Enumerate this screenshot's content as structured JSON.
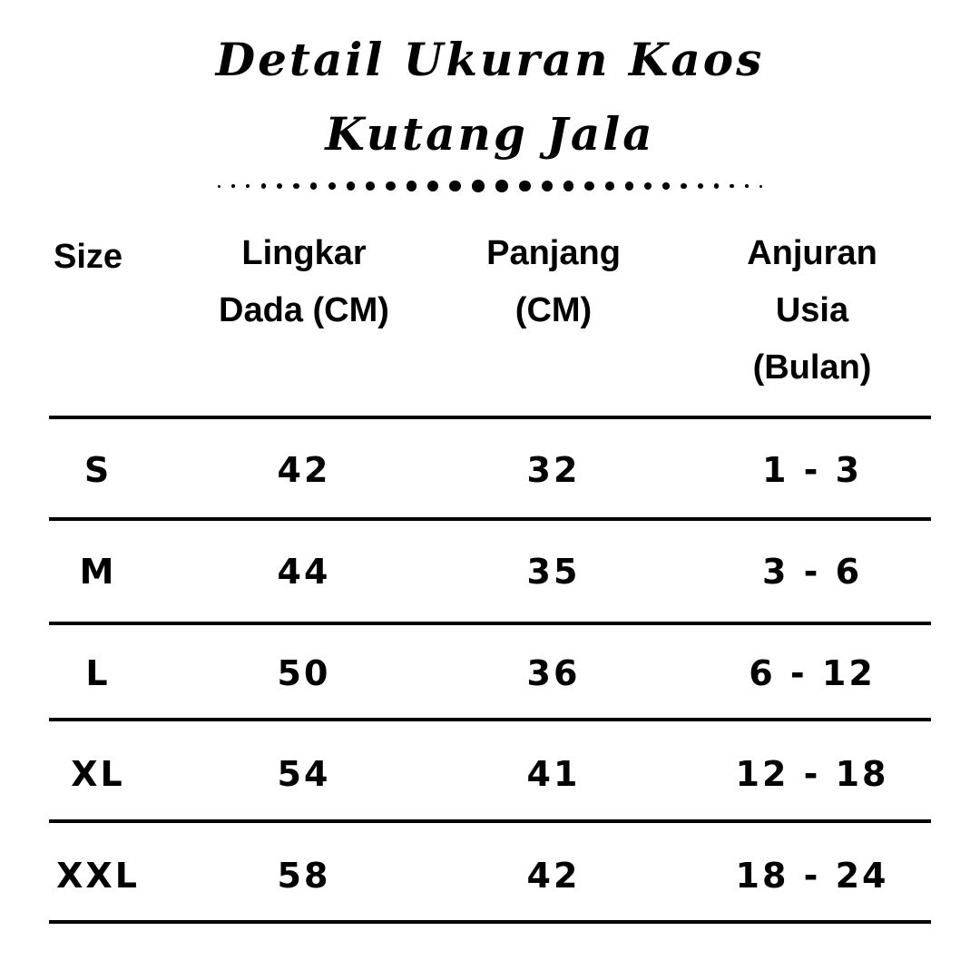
{
  "title": {
    "line1": "Detail Ukuran Kaos",
    "line2": "Kutang Jala"
  },
  "table": {
    "headers": [
      "Size",
      "Lingkar Dada (CM)",
      "Panjang (CM)",
      "Anjuran Usia (Bulan)"
    ],
    "header_lines": [
      [
        "Size"
      ],
      [
        "Lingkar",
        "Dada (CM)"
      ],
      [
        "Panjang",
        "(CM)"
      ],
      [
        "Anjuran",
        "Usia",
        "(Bulan)"
      ]
    ],
    "rows": [
      [
        "S",
        "42",
        "32",
        "1 - 3"
      ],
      [
        "M",
        "44",
        "35",
        "3 - 6"
      ],
      [
        "L",
        "50",
        "36",
        "6 - 12"
      ],
      [
        "XL",
        "54",
        "41",
        "12 - 18"
      ],
      [
        "XXL",
        "58",
        "42",
        "18 - 24"
      ]
    ]
  },
  "colors": {
    "text": "#000000",
    "background": "#ffffff"
  }
}
